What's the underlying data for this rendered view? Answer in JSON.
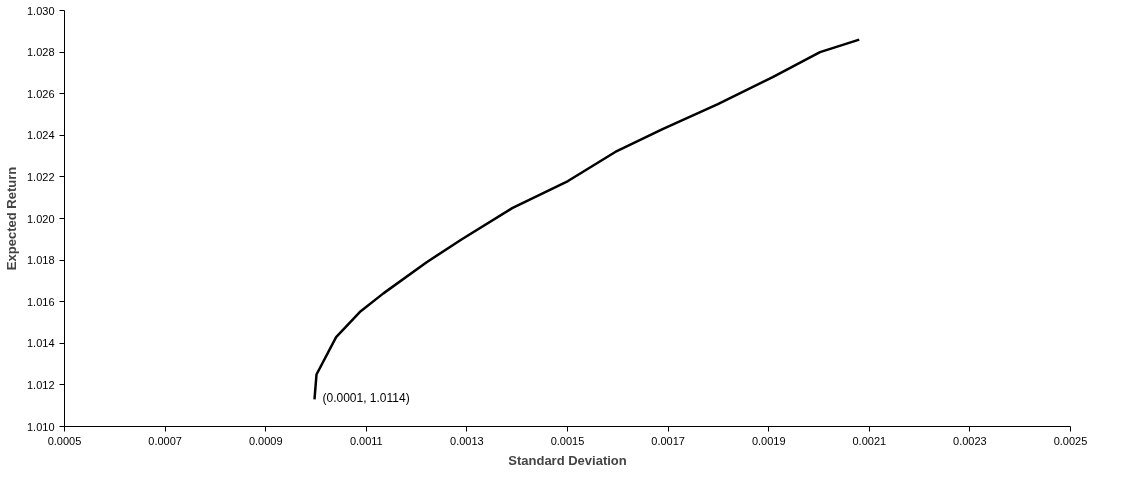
{
  "chart_data": {
    "type": "line",
    "xlabel": "Standard Deviation",
    "ylabel": "Expected Return",
    "x": [
      0.000997,
      0.001001,
      0.00104,
      0.001087,
      0.001134,
      0.00122,
      0.00129,
      0.00139,
      0.001501,
      0.001595,
      0.001689,
      0.001799,
      0.001908,
      0.002002,
      0.00208
    ],
    "series": [
      {
        "color": "#000000",
        "values": [
          1.0113,
          1.0125,
          1.0143,
          1.0155,
          1.0164,
          1.0179,
          1.019,
          1.0205,
          1.0218,
          1.0232,
          1.0243,
          1.0255,
          1.0268,
          1.028,
          1.0286
        ]
      }
    ],
    "annotations": [
      "(0.0001, 1.0114)"
    ],
    "xlim": [
      0.0005,
      0.0025
    ],
    "xticks": [
      0.0005,
      0.0007,
      0.0009,
      0.0011,
      0.0013,
      0.0015,
      0.0017,
      0.0019,
      0.0021,
      0.0023,
      0.0025
    ],
    "ylim": [
      1.01,
      1.03
    ],
    "yticks": [
      {
        "value": 1.01,
        "label": "1.010"
      },
      {
        "value": 1.012,
        "label": "1.012"
      },
      {
        "value": 1.014,
        "label": "1.014"
      },
      {
        "value": 1.016,
        "label": "1.016"
      },
      {
        "value": 1.018,
        "label": "1.018"
      },
      {
        "value": 1.02,
        "label": "1.020"
      },
      {
        "value": 1.022,
        "label": "1.022"
      },
      {
        "value": 1.024,
        "label": "1.024"
      },
      {
        "value": 1.026,
        "label": "1.026"
      },
      {
        "value": 1.028,
        "label": "1.028"
      },
      {
        "value": 1.03,
        "label": "1.030"
      }
    ],
    "grid": false,
    "marker": "none",
    "line_style": "solid"
  }
}
